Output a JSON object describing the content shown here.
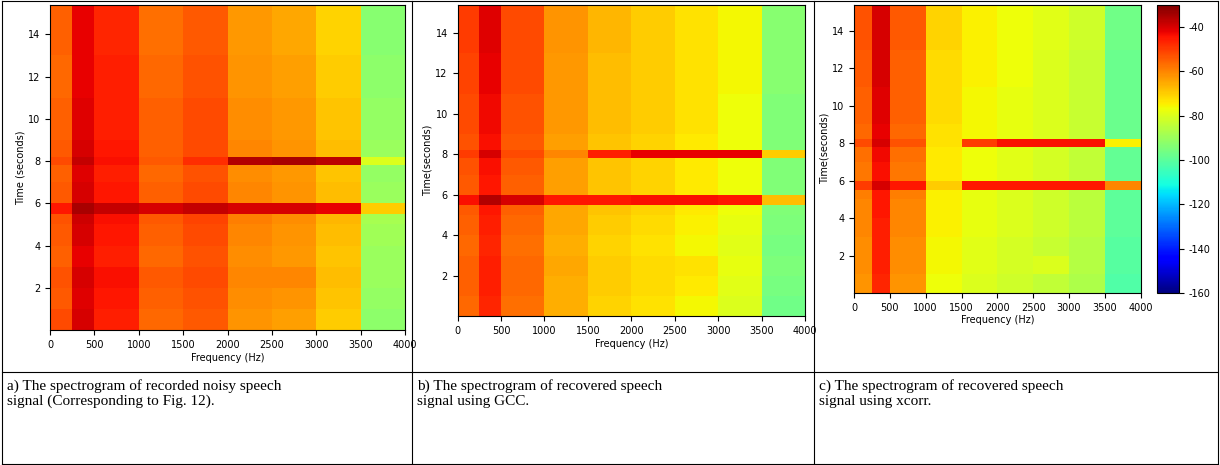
{
  "chart_data": [
    {
      "type": "heatmap",
      "caption": "a) The spectrogram of recorded noisy speech signal (Corresponding to Fig. 12).",
      "x_label": "Frequency (Hz)",
      "y_label": "Time (seconds)",
      "xlim": [
        0,
        4000
      ],
      "xticks": [
        0,
        500,
        1000,
        1500,
        2000,
        2500,
        3000,
        3500,
        4000
      ],
      "ylim": [
        0,
        15.4
      ],
      "yticks": [
        2,
        4,
        6,
        8,
        10,
        12,
        14
      ],
      "freq_edges": [
        0,
        250,
        500,
        1000,
        1500,
        2000,
        2500,
        3000,
        3500,
        4000
      ],
      "time_edges": [
        0,
        1,
        2,
        3,
        4,
        5,
        5.5,
        6,
        7,
        7.8,
        8.2,
        9,
        11,
        13,
        15.4
      ],
      "cells": [
        [
          -52,
          -40,
          -46,
          -56,
          -54,
          -62,
          -64,
          -70,
          -92
        ],
        [
          -54,
          -41,
          -45,
          -55,
          -53,
          -61,
          -62,
          -69,
          -91
        ],
        [
          -53,
          -40,
          -44,
          -54,
          -52,
          -60,
          -60,
          -68,
          -90
        ],
        [
          -55,
          -42,
          -46,
          -56,
          -53,
          -61,
          -63,
          -69,
          -90
        ],
        [
          -54,
          -40,
          -45,
          -55,
          -52,
          -60,
          -62,
          -68,
          -89
        ],
        [
          -53,
          -39,
          -44,
          -54,
          -51,
          -59,
          -61,
          -67,
          -88
        ],
        [
          -45,
          -35,
          -38,
          -40,
          -38,
          -40,
          -40,
          -42,
          -70
        ],
        [
          -54,
          -40,
          -45,
          -55,
          -52,
          -60,
          -62,
          -68,
          -90
        ],
        [
          -55,
          -41,
          -46,
          -56,
          -53,
          -61,
          -63,
          -69,
          -91
        ],
        [
          -52,
          -38,
          -44,
          -54,
          -48,
          -36,
          -35,
          -37,
          -80
        ],
        [
          -54,
          -40,
          -45,
          -55,
          -52,
          -60,
          -62,
          -68,
          -90
        ],
        [
          -55,
          -41,
          -46,
          -55,
          -52,
          -61,
          -63,
          -69,
          -91
        ],
        [
          -56,
          -42,
          -46,
          -56,
          -53,
          -62,
          -64,
          -70,
          -92
        ],
        [
          -55,
          -42,
          -47,
          -57,
          -54,
          -63,
          -65,
          -71,
          -93
        ]
      ],
      "colorbar": false
    },
    {
      "type": "heatmap",
      "caption": "b) The spectrogram of recovered speech signal using GCC.",
      "x_label": "Frequency (Hz)",
      "y_label": "Time(seconds)",
      "xlim": [
        0,
        4000
      ],
      "xticks": [
        0,
        500,
        1000,
        1500,
        2000,
        2500,
        3000,
        3500,
        4000
      ],
      "ylim": [
        0,
        15.4
      ],
      "yticks": [
        2,
        4,
        6,
        8,
        10,
        12,
        14
      ],
      "freq_edges": [
        0,
        250,
        500,
        1000,
        1500,
        2000,
        2500,
        3000,
        3500,
        4000
      ],
      "time_edges": [
        0,
        1,
        2,
        3,
        4,
        5,
        5.5,
        6,
        7,
        7.8,
        8.2,
        9,
        11,
        13,
        15.4
      ],
      "cells": [
        [
          -56,
          -47,
          -57,
          -66,
          -71,
          -73,
          -76,
          -80,
          -97
        ],
        [
          -55,
          -46,
          -56,
          -66,
          -70,
          -72,
          -74,
          -79,
          -96
        ],
        [
          -55,
          -46,
          -56,
          -65,
          -70,
          -72,
          -73,
          -78,
          -95
        ],
        [
          -56,
          -47,
          -57,
          -66,
          -71,
          -73,
          -76,
          -79,
          -96
        ],
        [
          -55,
          -46,
          -56,
          -65,
          -70,
          -72,
          -75,
          -78,
          -95
        ],
        [
          -54,
          -45,
          -55,
          -65,
          -69,
          -71,
          -74,
          -77,
          -94
        ],
        [
          -44,
          -36,
          -40,
          -45,
          -45,
          -44,
          -44,
          -45,
          -68
        ],
        [
          -54,
          -45,
          -55,
          -64,
          -69,
          -71,
          -74,
          -77,
          -94
        ],
        [
          -53,
          -44,
          -54,
          -64,
          -69,
          -71,
          -74,
          -77,
          -94
        ],
        [
          -50,
          -40,
          -52,
          -60,
          -46,
          -42,
          -42,
          -42,
          -70
        ],
        [
          -53,
          -44,
          -54,
          -64,
          -69,
          -71,
          -74,
          -77,
          -94
        ],
        [
          -52,
          -43,
          -53,
          -63,
          -68,
          -70,
          -73,
          -77,
          -94
        ],
        [
          -51,
          -42,
          -52,
          -63,
          -68,
          -70,
          -73,
          -76,
          -93
        ],
        [
          -50,
          -41,
          -52,
          -62,
          -67,
          -70,
          -73,
          -76,
          -93
        ]
      ],
      "colorbar": false
    },
    {
      "type": "heatmap",
      "caption": "c) The spectrogram of recovered speech signal using xcorr.",
      "x_label": "Frequency (Hz)",
      "y_label": "Time(seconds)",
      "xlim": [
        0,
        4000
      ],
      "xticks": [
        0,
        500,
        1000,
        1500,
        2000,
        2500,
        3000,
        3500,
        4000
      ],
      "ylim": [
        0,
        15.4
      ],
      "yticks": [
        2,
        4,
        6,
        8,
        10,
        12,
        14
      ],
      "freq_edges": [
        0,
        250,
        500,
        1000,
        1500,
        2000,
        2500,
        3000,
        3500,
        4000
      ],
      "time_edges": [
        0,
        1,
        2,
        3,
        4,
        5,
        5.5,
        6,
        7,
        7.8,
        8.2,
        9,
        11,
        13,
        15.4
      ],
      "cells": [
        [
          -62,
          -47,
          -62,
          -77,
          -80,
          -82,
          -84,
          -87,
          -102
        ],
        [
          -61,
          -46,
          -61,
          -76,
          -79,
          -81,
          -80,
          -86,
          -101
        ],
        [
          -61,
          -46,
          -61,
          -76,
          -79,
          -81,
          -83,
          -86,
          -101
        ],
        [
          -60,
          -46,
          -60,
          -75,
          -78,
          -80,
          -82,
          -85,
          -100
        ],
        [
          -60,
          -45,
          -60,
          -75,
          -78,
          -80,
          -82,
          -85,
          -100
        ],
        [
          -59,
          -45,
          -59,
          -75,
          -78,
          -80,
          -82,
          -85,
          -100
        ],
        [
          -50,
          -40,
          -45,
          -70,
          -45,
          -45,
          -45,
          -45,
          -60
        ],
        [
          -58,
          -44,
          -58,
          -74,
          -77,
          -79,
          -81,
          -84,
          -99
        ],
        [
          -57,
          -43,
          -57,
          -74,
          -77,
          -79,
          -81,
          -84,
          -99
        ],
        [
          -52,
          -40,
          -53,
          -73,
          -50,
          -44,
          -44,
          -44,
          -75
        ],
        [
          -56,
          -42,
          -56,
          -73,
          -76,
          -78,
          -80,
          -83,
          -98
        ],
        [
          -55,
          -41,
          -55,
          -72,
          -76,
          -78,
          -80,
          -83,
          -98
        ],
        [
          -54,
          -40,
          -55,
          -72,
          -75,
          -77,
          -80,
          -83,
          -98
        ],
        [
          -53,
          -40,
          -54,
          -71,
          -75,
          -77,
          -79,
          -82,
          -97
        ]
      ],
      "colorbar": true
    }
  ],
  "color_scale": {
    "range": [
      -160,
      -30
    ],
    "ticks": [
      -40,
      -60,
      -80,
      -100,
      -120,
      -140,
      -160
    ]
  }
}
